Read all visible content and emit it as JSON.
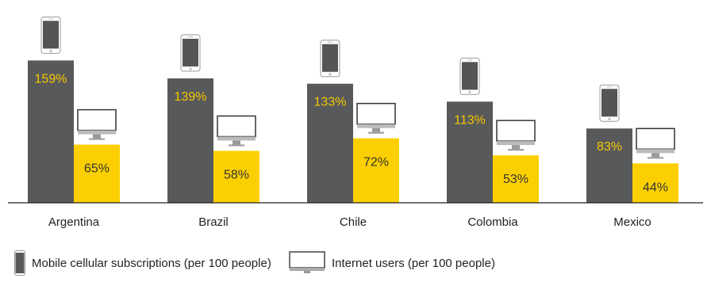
{
  "chart_data": {
    "type": "bar",
    "categories": [
      "Argentina",
      "Brazil",
      "Chile",
      "Colombia",
      "Mexico"
    ],
    "series": [
      {
        "name": "Mobile cellular subscriptions (per 100 people)",
        "values": [
          159,
          139,
          133,
          113,
          83
        ],
        "labels": [
          "159%",
          "139%",
          "133%",
          "113%",
          "83%"
        ],
        "color": "#58595b",
        "label_color": "#f7c800",
        "icon": "smartphone-icon"
      },
      {
        "name": "Internet users (per 100 people)",
        "values": [
          65,
          58,
          72,
          53,
          44
        ],
        "labels": [
          "65%",
          "58%",
          "72%",
          "53%",
          "44%"
        ],
        "color": "#fcd000",
        "label_color": "#333333",
        "icon": "monitor-icon"
      }
    ],
    "ylim": [
      0,
      200
    ],
    "grid": false,
    "legend_position": "bottom-left"
  }
}
